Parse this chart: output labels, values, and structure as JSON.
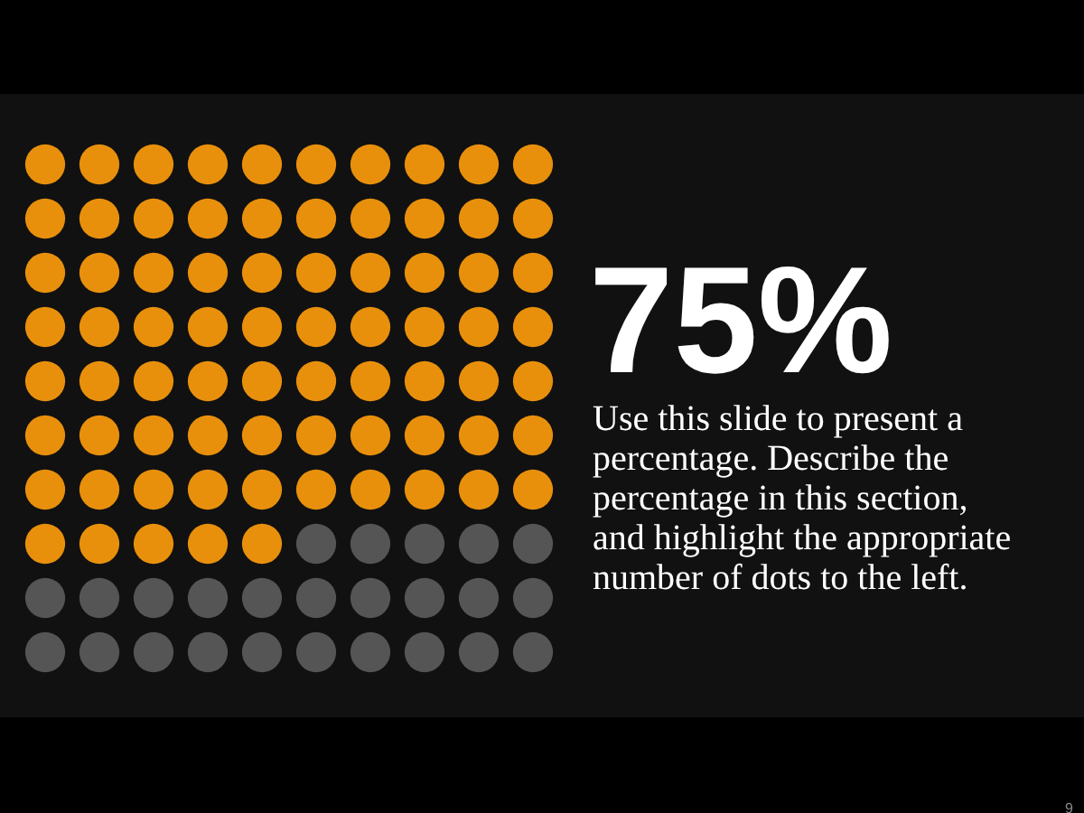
{
  "chart_data": {
    "type": "other",
    "categories": [
      null
    ],
    "values": [
      75
    ],
    "value_labels": [
      "75%"
    ],
    "colors": [
      "#e8900c"
    ],
    "annotations": [
      "Use this slide to present a\npercentage. Describe the\npercentage in this section,\nand highlight the appropriate\nnumber of dots to the left.",
      "9"
    ]
  }
}
